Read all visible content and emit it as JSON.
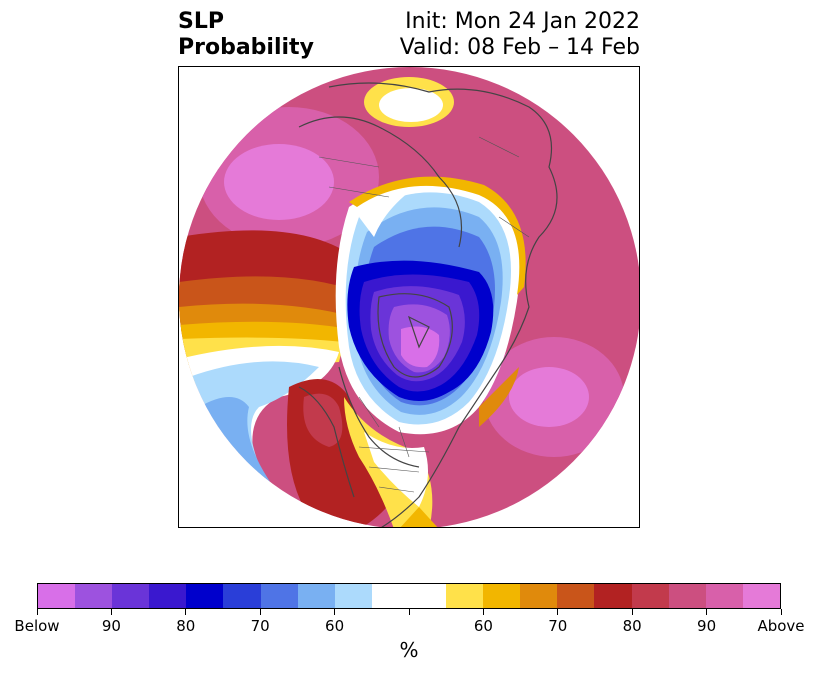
{
  "title": {
    "left_line1": "SLP",
    "left_line2": "Probability",
    "right_line1": "Init: Mon 24 Jan 2022",
    "right_line2": "Valid: 08 Feb – 14 Feb"
  },
  "colorbar": {
    "colors": [
      "#d86fe8",
      "#9d52df",
      "#6a34d8",
      "#3a18cf",
      "#0000cc",
      "#2a3ed8",
      "#4f74e6",
      "#79b0f2",
      "#acdafc",
      "#ffffff",
      "#ffffff",
      "#ffe14a",
      "#f2b600",
      "#e08a0c",
      "#c9551a",
      "#b22222",
      "#c23a4c",
      "#cc4f80",
      "#d860aa",
      "#e57ad8"
    ],
    "tick_labels": [
      "Below",
      "90",
      "80",
      "70",
      "60",
      "",
      "60",
      "70",
      "80",
      "90",
      "Above"
    ],
    "unit": "%"
  },
  "map": {
    "projection": "north-polar-stereographic",
    "field": "SLP probability",
    "features": [
      "coastlines",
      "country-borders",
      "state-province-borders"
    ]
  }
}
